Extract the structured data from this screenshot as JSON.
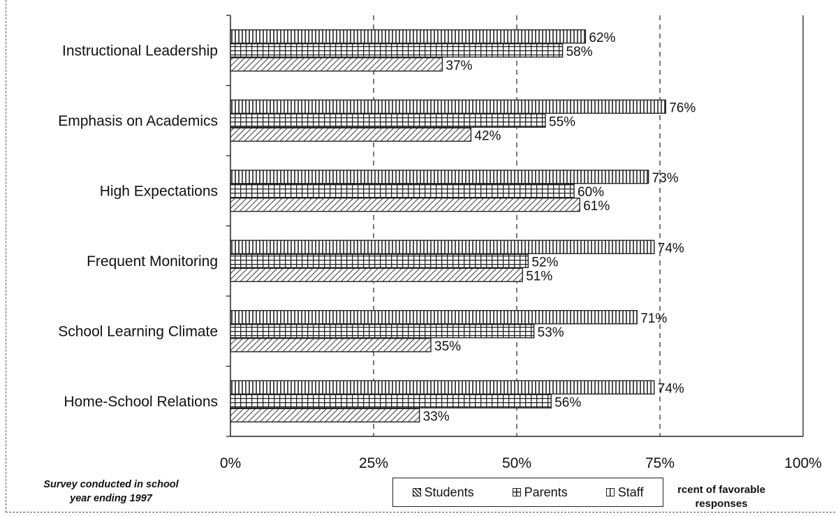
{
  "chart_data": {
    "type": "bar",
    "orientation": "horizontal",
    "categories": [
      "Instructional Leadership",
      "Emphasis on Academics",
      "High Expectations",
      "Frequent Monitoring",
      "School Learning Climate",
      "Home-School Relations"
    ],
    "series": [
      {
        "name": "Staff",
        "values": [
          62,
          76,
          73,
          74,
          71,
          74
        ],
        "pattern": "vertical-lines"
      },
      {
        "name": "Parents",
        "values": [
          58,
          55,
          60,
          52,
          53,
          56
        ],
        "pattern": "grid"
      },
      {
        "name": "Students",
        "values": [
          37,
          42,
          61,
          51,
          35,
          33
        ],
        "pattern": "diagonal-hatch"
      }
    ],
    "x_ticks": [
      "0%",
      "25%",
      "50%",
      "75%",
      "100%"
    ],
    "xlim": [
      0,
      100
    ],
    "value_suffix": "%",
    "grid": "dashed vertical at 25, 50, 75",
    "legend": {
      "placement": "bottom",
      "items": [
        "Students",
        "Parents",
        "Staff"
      ]
    },
    "xlabel_lines": [
      "rcent of favorable",
      "responses"
    ],
    "note_lines": [
      "Survey conducted in school",
      "year ending 1997"
    ]
  }
}
